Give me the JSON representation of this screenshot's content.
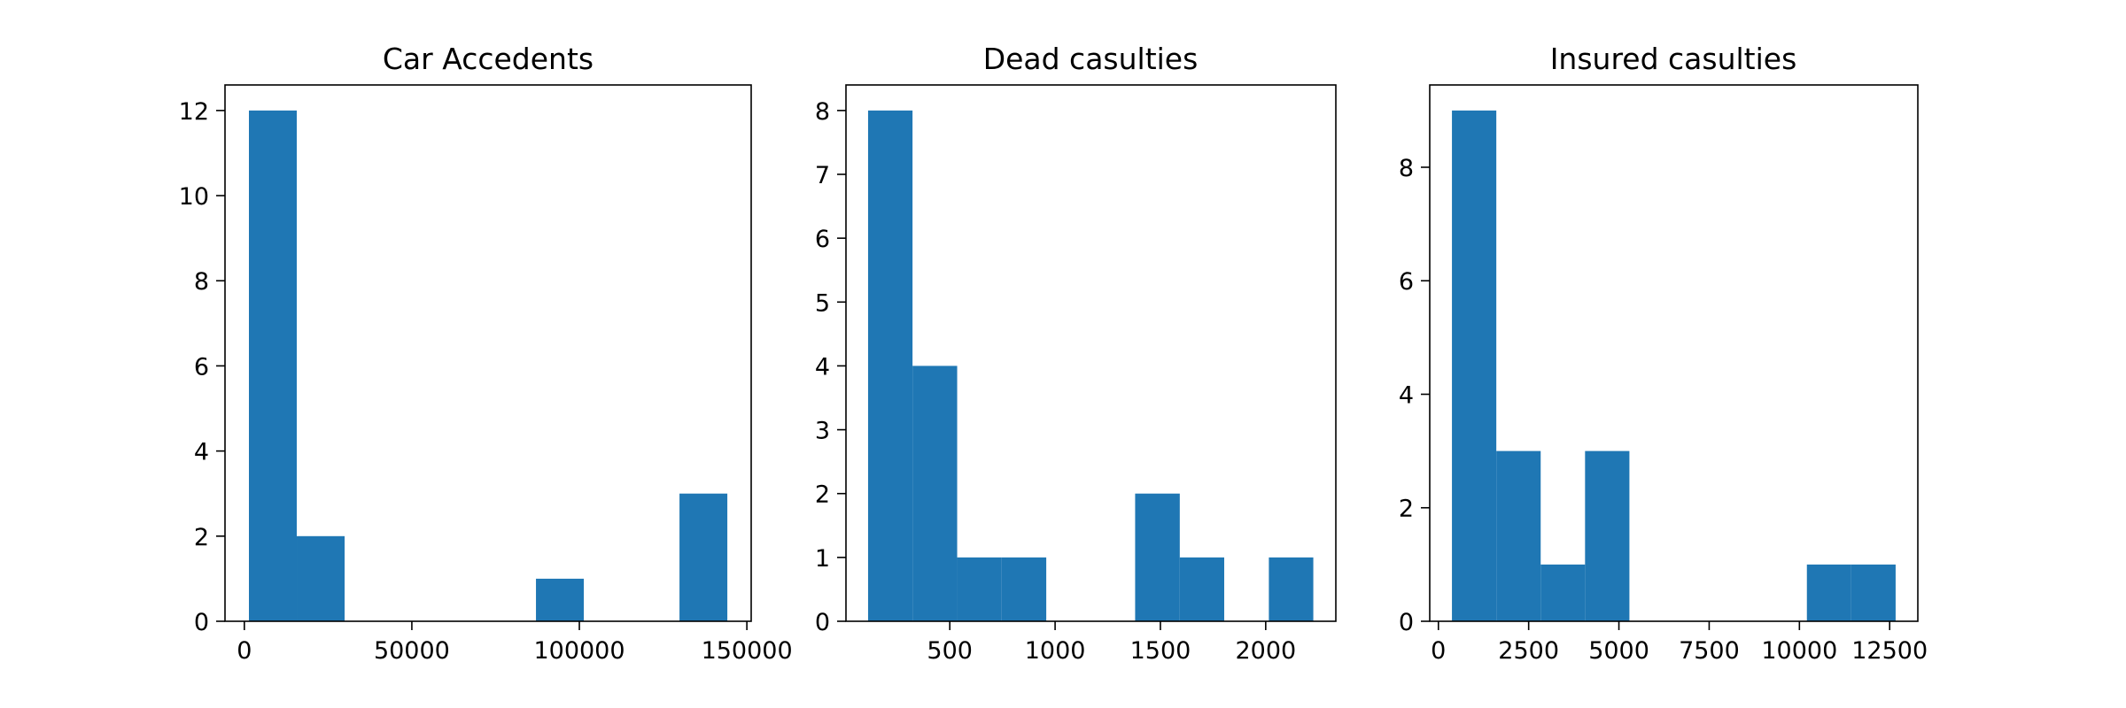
{
  "chart_data": [
    {
      "type": "bar",
      "title": "Car Accedents",
      "xlabel": "",
      "ylabel": "",
      "xlim": [
        -5770,
        151290
      ],
      "ylim": [
        0,
        12.6
      ],
      "xticks": [
        0,
        50000,
        100000,
        150000
      ],
      "xtick_labels": [
        "0",
        "50000",
        "100000",
        "150000"
      ],
      "yticks": [
        0,
        2,
        4,
        6,
        8,
        10,
        12
      ],
      "ytick_labels": [
        "0",
        "2",
        "4",
        "6",
        "8",
        "10",
        "12"
      ],
      "bins": [
        {
          "x0": 1370,
          "x1": 15650,
          "count": 12
        },
        {
          "x0": 15650,
          "x1": 29930,
          "count": 2
        },
        {
          "x0": 29930,
          "x1": 44210,
          "count": 0
        },
        {
          "x0": 44210,
          "x1": 58490,
          "count": 0
        },
        {
          "x0": 58490,
          "x1": 72770,
          "count": 0
        },
        {
          "x0": 72770,
          "x1": 87050,
          "count": 0
        },
        {
          "x0": 87050,
          "x1": 101330,
          "count": 1
        },
        {
          "x0": 101330,
          "x1": 115610,
          "count": 0
        },
        {
          "x0": 115610,
          "x1": 129890,
          "count": 0
        },
        {
          "x0": 129890,
          "x1": 144170,
          "count": 3
        }
      ],
      "bar_color": "#1f77b4"
    },
    {
      "type": "bar",
      "title": "Dead casulties",
      "xlabel": "",
      "ylabel": "",
      "xlim": [
        7,
        2333
      ],
      "ylim": [
        0,
        8.4
      ],
      "xticks": [
        500,
        1000,
        1500,
        2000
      ],
      "xtick_labels": [
        "500",
        "1000",
        "1500",
        "2000"
      ],
      "yticks": [
        0,
        1,
        2,
        3,
        4,
        5,
        6,
        7,
        8
      ],
      "ytick_labels": [
        "0",
        "1",
        "2",
        "3",
        "4",
        "5",
        "6",
        "7",
        "8"
      ],
      "bins": [
        {
          "x0": 112,
          "x1": 323,
          "count": 8
        },
        {
          "x0": 323,
          "x1": 535,
          "count": 4
        },
        {
          "x0": 535,
          "x1": 746,
          "count": 1
        },
        {
          "x0": 746,
          "x1": 958,
          "count": 1
        },
        {
          "x0": 958,
          "x1": 1169,
          "count": 0
        },
        {
          "x0": 1169,
          "x1": 1380,
          "count": 0
        },
        {
          "x0": 1380,
          "x1": 1592,
          "count": 2
        },
        {
          "x0": 1592,
          "x1": 1803,
          "count": 1
        },
        {
          "x0": 1803,
          "x1": 2015,
          "count": 0
        },
        {
          "x0": 2015,
          "x1": 2226,
          "count": 1
        }
      ],
      "bar_color": "#1f77b4"
    },
    {
      "type": "bar",
      "title": "Insured casulties",
      "xlabel": "",
      "ylabel": "",
      "xlim": [
        -240,
        13280
      ],
      "ylim": [
        0,
        9.45
      ],
      "xticks": [
        0,
        2500,
        5000,
        7500,
        10000,
        12500
      ],
      "xtick_labels": [
        "0",
        "2500",
        "5000",
        "7500",
        "10000",
        "12500"
      ],
      "yticks": [
        0,
        2,
        4,
        6,
        8
      ],
      "ytick_labels": [
        "0",
        "2",
        "4",
        "6",
        "8"
      ],
      "bins": [
        {
          "x0": 375,
          "x1": 1604,
          "count": 9
        },
        {
          "x0": 1604,
          "x1": 2833,
          "count": 3
        },
        {
          "x0": 2833,
          "x1": 4062,
          "count": 1
        },
        {
          "x0": 4062,
          "x1": 5291,
          "count": 3
        },
        {
          "x0": 5291,
          "x1": 6520,
          "count": 0
        },
        {
          "x0": 6520,
          "x1": 7749,
          "count": 0
        },
        {
          "x0": 7749,
          "x1": 8978,
          "count": 0
        },
        {
          "x0": 8978,
          "x1": 10207,
          "count": 0
        },
        {
          "x0": 10207,
          "x1": 11436,
          "count": 1
        },
        {
          "x0": 11436,
          "x1": 12665,
          "count": 1
        }
      ],
      "bar_color": "#1f77b4"
    }
  ]
}
